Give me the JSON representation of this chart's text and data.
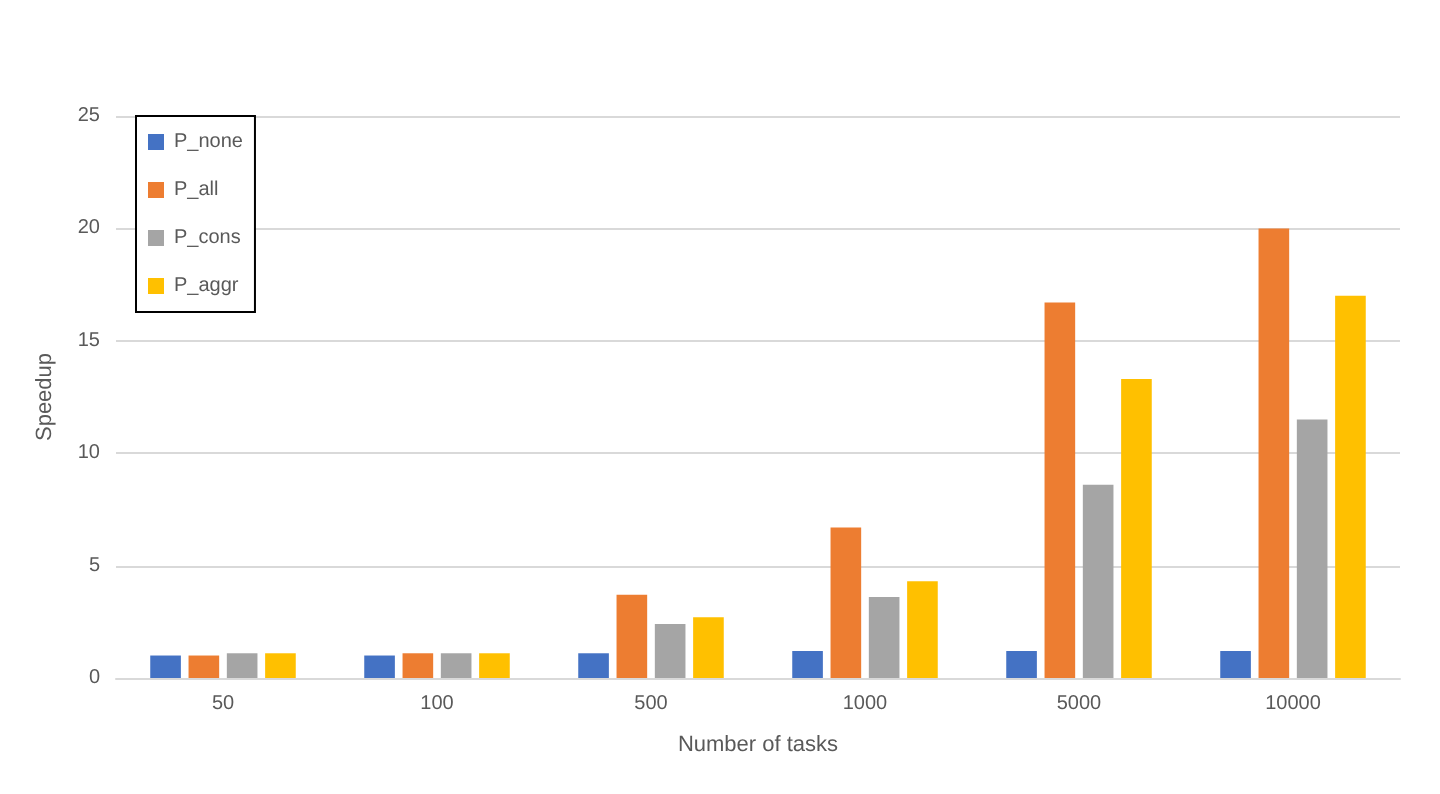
{
  "chart_data": {
    "type": "bar",
    "xlabel": "Number of tasks",
    "ylabel": "Speedup",
    "categories": [
      "50",
      "100",
      "500",
      "1000",
      "5000",
      "10000"
    ],
    "series": [
      {
        "name": "P_none",
        "color": "#4472c4",
        "values": [
          1,
          1,
          1.1,
          1.2,
          1.2,
          1.2
        ]
      },
      {
        "name": "P_all",
        "color": "#ed7d31",
        "values": [
          1,
          1.1,
          3.7,
          6.7,
          16.7,
          20
        ]
      },
      {
        "name": "P_cons",
        "color": "#a5a5a5",
        "values": [
          1.1,
          1.1,
          2.4,
          3.6,
          8.6,
          11.5
        ]
      },
      {
        "name": "P_aggr",
        "color": "#ffc000",
        "values": [
          1.1,
          1.1,
          2.7,
          4.3,
          13.3,
          17
        ]
      }
    ],
    "ylim": [
      0,
      25
    ],
    "yticks": [
      0,
      5,
      10,
      15,
      20,
      25
    ],
    "grid": "y",
    "legend": "top left"
  }
}
